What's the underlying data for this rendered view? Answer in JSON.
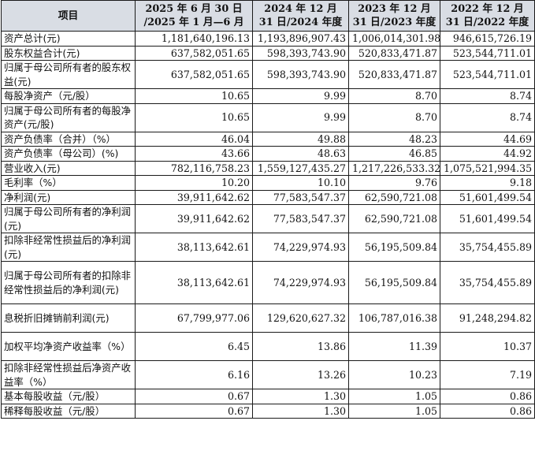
{
  "table": {
    "headers": [
      "项目",
      "2025 年 6 月 30 日 /2025 年 1 月—6 月",
      "2024 年 12 月 31 日/2024 年度",
      "2023 年 12 月 31 日/2023 年度",
      "2022 年 12 月 31 日/2022 年度"
    ],
    "rows": [
      {
        "label": "资产总计(元)",
        "values": [
          "1,181,640,196.13",
          "1,193,896,907.43",
          "1,006,014,301.98",
          "946,615,726.19"
        ]
      },
      {
        "label": "股东权益合计(元)",
        "values": [
          "637,582,051.65",
          "598,393,743.90",
          "520,833,471.87",
          "523,544,711.01"
        ]
      },
      {
        "label": "归属于母公司所有者的股东权益(元)",
        "values": [
          "637,582,051.65",
          "598,393,743.90",
          "520,833,471.87",
          "523,544,711.01"
        ]
      },
      {
        "label": "每股净资产（元/股）",
        "values": [
          "10.65",
          "9.99",
          "8.70",
          "8.74"
        ]
      },
      {
        "label": "归属于母公司所有者的每股净资产(元/股)",
        "values": [
          "10.65",
          "9.99",
          "8.70",
          "8.74"
        ]
      },
      {
        "label": "资产负债率（合并）（%）",
        "values": [
          "46.04",
          "49.88",
          "48.23",
          "44.69"
        ]
      },
      {
        "label": "资产负债率（母公司）(%)",
        "values": [
          "43.66",
          "48.63",
          "46.85",
          "44.92"
        ]
      },
      {
        "label": "营业收入(元)",
        "values": [
          "782,116,758.23",
          "1,559,127,435.27",
          "1,217,226,533.32",
          "1,075,521,994.35"
        ]
      },
      {
        "label": "毛利率（%）",
        "values": [
          "10.20",
          "10.10",
          "9.76",
          "9.18"
        ]
      },
      {
        "label": "净利润(元)",
        "values": [
          "39,911,642.62",
          "77,583,547.37",
          "62,590,721.08",
          "51,601,499.54"
        ]
      },
      {
        "label": "归属于母公司所有者的净利润(元)",
        "values": [
          "39,911,642.62",
          "77,583,547.37",
          "62,590,721.08",
          "51,601,499.54"
        ]
      },
      {
        "label": "扣除非经常性损益后的净利润(元)",
        "values": [
          "38,113,642.61",
          "74,229,974.93",
          "56,195,509.84",
          "35,754,455.89"
        ]
      },
      {
        "label": "归属于母公司所有者的扣除非经常性损益后的净利润(元)",
        "values": [
          "38,113,642.61",
          "74,229,974.93",
          "56,195,509.84",
          "35,754,455.89"
        ]
      },
      {
        "label": "息税折旧摊销前利润(元)",
        "values": [
          "67,799,977.06",
          "129,620,627.32",
          "106,787,016.38",
          "91,248,294.82"
        ]
      },
      {
        "label": "加权平均净资产收益率（%）",
        "values": [
          "6.45",
          "13.86",
          "11.39",
          "10.37"
        ]
      },
      {
        "label": "扣除非经常性损益后净资产收益率（%）",
        "values": [
          "6.16",
          "13.26",
          "10.23",
          "7.19"
        ]
      },
      {
        "label": "基本每股收益（元/股）",
        "values": [
          "0.67",
          "1.30",
          "1.05",
          "0.86"
        ]
      },
      {
        "label": "稀释每股收益（元/股）",
        "values": [
          "0.67",
          "1.30",
          "1.05",
          "0.86"
        ]
      }
    ]
  },
  "colors": {
    "header_bg": "#d9dde4",
    "border": "#1a1a1a",
    "text": "#111111"
  }
}
